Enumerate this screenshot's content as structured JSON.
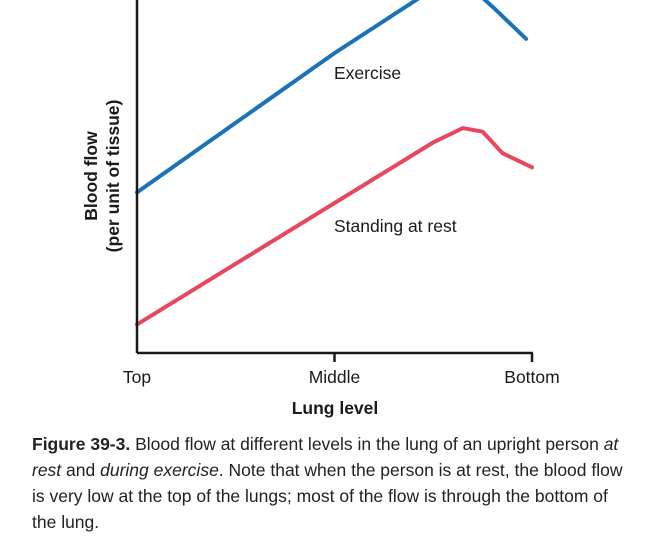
{
  "chart_data": {
    "type": "line",
    "xlabel": "Lung level",
    "ylabel_line1": "Blood flow",
    "ylabel_line2": "(per unit of tissue)",
    "categories": [
      "Top",
      "Middle",
      "Bottom"
    ],
    "x_range": [
      0,
      2
    ],
    "y_range": [
      0,
      10
    ],
    "grid": false,
    "series": [
      {
        "name": "Exercise",
        "color": "#1a73b8",
        "points": [
          [
            0,
            4.5
          ],
          [
            1,
            8.4
          ],
          [
            1.5,
            10.2
          ],
          [
            1.6,
            10.4
          ],
          [
            1.7,
            10.2
          ],
          [
            1.8,
            9.7
          ],
          [
            1.97,
            8.8
          ]
        ]
      },
      {
        "name": "Standing at rest",
        "color": "#e8475d",
        "points": [
          [
            0,
            0.8
          ],
          [
            1,
            4.2
          ],
          [
            1.5,
            5.9
          ],
          [
            1.65,
            6.3
          ],
          [
            1.75,
            6.2
          ],
          [
            1.85,
            5.6
          ],
          [
            2.0,
            5.2
          ]
        ]
      }
    ]
  },
  "caption": {
    "label": "Figure 39-3.",
    "text_1": " Blood flow at different levels in the lung of an upright person ",
    "em_1": "at rest",
    "text_2": " and ",
    "em_2": "during exercise",
    "text_3": ". Note that when the person is at rest, the blood flow is very low at the top of the lungs; most of the flow is through the bottom of the lung."
  }
}
